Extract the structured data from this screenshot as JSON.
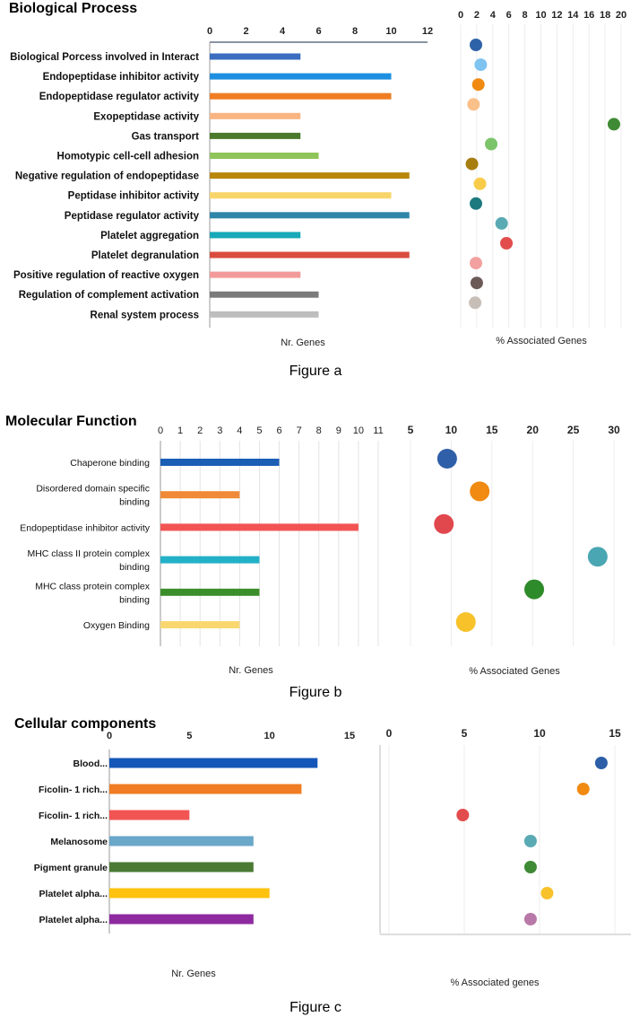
{
  "figure_a": {
    "section_title": "Biological Process",
    "caption": "Figure a",
    "chart_data": [
      {
        "type": "bar",
        "orientation": "horizontal",
        "title": "Biological Process",
        "xlabel": "Nr. Genes",
        "xlim": [
          0,
          12
        ],
        "xticks": [
          "0",
          "2",
          "4",
          "6",
          "8",
          "10",
          "12"
        ],
        "categories": [
          "Biological Porcess involved in Interact",
          "Endopeptidase inhibitor activity",
          "Endopeptidase regulator activity",
          "Exopeptidase activity",
          "Gas transport",
          "Homotypic cell-cell adhesion",
          "Negative regulation of endopeptidase",
          "Peptidase inhibitor activity",
          "Peptidase regulator activity",
          "Platelet aggregation",
          "Platelet degranulation",
          "Positive regulation of reactive oxygen",
          "Regulation of complement activation",
          "Renal system process"
        ],
        "values": [
          5,
          10,
          10,
          5,
          5,
          6,
          11,
          10,
          11,
          5,
          11,
          5,
          6,
          6
        ],
        "colors": [
          "#3a6cc0",
          "#1e8fe0",
          "#f07d24",
          "#f9b482",
          "#4b7a2c",
          "#8fc45a",
          "#b8860b",
          "#f8d56a",
          "#2f86a8",
          "#17a9b8",
          "#d94c3f",
          "#f39a9a",
          "#7a7a7a",
          "#bdbdbd"
        ]
      },
      {
        "type": "scatter",
        "title": "",
        "xlabel": "% Associated Genes",
        "xlim": [
          0,
          20
        ],
        "xticks": [
          "0",
          "2",
          "4",
          "6",
          "8",
          "10",
          "12",
          "14",
          "16",
          "18",
          "20"
        ],
        "categories": [
          "Biological Porcess involved in Interact",
          "Endopeptidase inhibitor activity",
          "Endopeptidase regulator activity",
          "Exopeptidase activity",
          "Gas transport",
          "Homotypic cell-cell adhesion",
          "Negative regulation of endopeptidase",
          "Peptidase inhibitor activity",
          "Peptidase regulator activity",
          "Platelet aggregation",
          "Platelet degranulation",
          "Positive regulation of reactive oxygen",
          "Regulation of complement activation",
          "Renal system process"
        ],
        "values": [
          1.9,
          2.5,
          2.2,
          1.6,
          19.1,
          3.8,
          1.4,
          2.4,
          1.9,
          5.1,
          5.7,
          1.9,
          2.0,
          1.8
        ],
        "colors": [
          "#2e62a8",
          "#7fc3f0",
          "#f08a10",
          "#f9c08a",
          "#3f8a34",
          "#7cc46a",
          "#a77d10",
          "#f8cc4a",
          "#1d7a7e",
          "#5aaab4",
          "#e34c4c",
          "#f2a0a0",
          "#6b5a56",
          "#c8beb8"
        ]
      }
    ]
  },
  "figure_b": {
    "section_title": "Molecular Function",
    "caption": "Figure b",
    "chart_data": [
      {
        "type": "bar",
        "orientation": "horizontal",
        "title": "Molecular Function",
        "xlabel": "Nr. Genes",
        "xlim": [
          0,
          11
        ],
        "xticks": [
          "0",
          "1",
          "2",
          "3",
          "4",
          "5",
          "6",
          "7",
          "8",
          "9",
          "10",
          "11"
        ],
        "categories": [
          [
            "Chaperone binding"
          ],
          [
            "Disordered domain specific",
            "binding"
          ],
          [
            "Endopeptidase inhibitor activity"
          ],
          [
            "MHC class II protein complex",
            "binding"
          ],
          [
            "MHC class protein complex",
            "binding"
          ],
          [
            "Oxygen Binding"
          ]
        ],
        "values": [
          6,
          4,
          10,
          5,
          5,
          4
        ],
        "colors": [
          "#1b5eb5",
          "#f08a38",
          "#f25454",
          "#22b1c7",
          "#3b8f2a",
          "#f9d770"
        ]
      },
      {
        "type": "scatter",
        "title": "",
        "xlabel": "% Associated Genes",
        "xlim": [
          5,
          30
        ],
        "xticks": [
          "5",
          "10",
          "15",
          "20",
          "25",
          "30"
        ],
        "categories": [
          "Chaperone binding",
          "Disordered domain specific binding",
          "Endopeptidase inhibitor activity",
          "MHC class II protein complex binding",
          "MHC class protein complex binding",
          "Oxygen Binding"
        ],
        "values": [
          9.5,
          13.5,
          9.1,
          28.0,
          20.2,
          11.8
        ],
        "colors": [
          "#2f5fa8",
          "#f08a10",
          "#e0484e",
          "#4aa6b2",
          "#2e8b2a",
          "#f7c22a"
        ]
      }
    ]
  },
  "figure_c": {
    "section_title": "Cellular components",
    "caption": "Figure c",
    "chart_data": [
      {
        "type": "bar",
        "orientation": "horizontal",
        "title": "Cellular components",
        "xlabel": "Nr. Genes",
        "xlim": [
          0,
          15
        ],
        "xticks": [
          "0",
          "5",
          "10",
          "15"
        ],
        "categories": [
          "Blood...",
          "Ficolin- 1 rich...",
          "Ficolin- 1 rich...",
          "Melanosome",
          "Pigment granule",
          "Platelet alpha...",
          "Platelet alpha..."
        ],
        "values": [
          13,
          12,
          5,
          9,
          9,
          10,
          9
        ],
        "colors": [
          "#1557b8",
          "#f07d24",
          "#f25454",
          "#6aa7c8",
          "#4a7a34",
          "#ffc20e",
          "#8e2aa0"
        ]
      },
      {
        "type": "scatter",
        "title": "",
        "xlabel": "% Associated genes",
        "xlim": [
          0,
          15
        ],
        "xticks": [
          "0",
          "5",
          "10",
          "15"
        ],
        "categories": [
          "Blood...",
          "Ficolin- 1 rich...",
          "Ficolin- 1 rich...",
          "Melanosome",
          "Pigment granule",
          "Platelet alpha...",
          "Platelet alpha..."
        ],
        "values": [
          14.1,
          12.9,
          4.9,
          9.4,
          9.4,
          10.5,
          9.4
        ],
        "colors": [
          "#2c5fa8",
          "#f08a10",
          "#e34c4c",
          "#5aaab4",
          "#3f8a34",
          "#f7c22a",
          "#b879a8"
        ]
      }
    ]
  }
}
